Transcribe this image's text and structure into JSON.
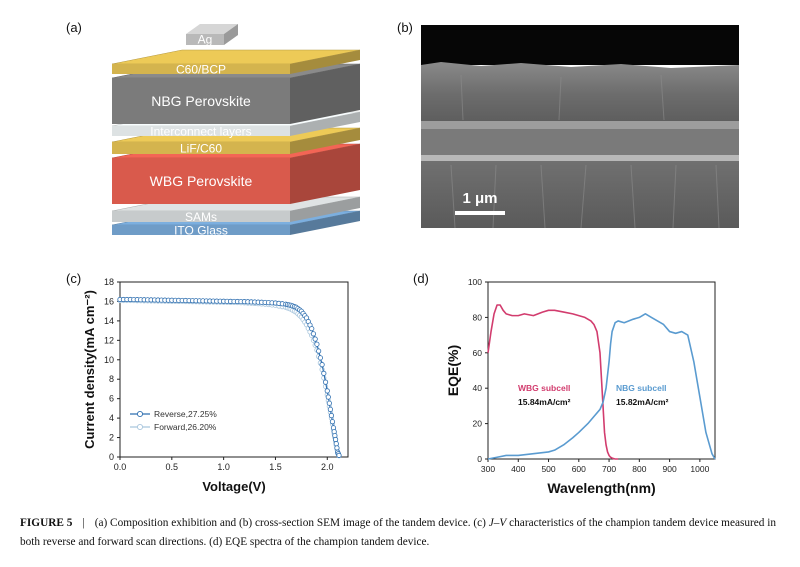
{
  "panels": {
    "a": "(a)",
    "b": "(b)",
    "c": "(c)",
    "d": "(d)"
  },
  "stack_layers": [
    {
      "label": "Ag",
      "color": "#b9b9b9"
    },
    {
      "label": "C60/BCP",
      "color": "#d4b44e"
    },
    {
      "label": "NBG Perovskite",
      "color": "#7b7b7b"
    },
    {
      "label": "Interconnect layers",
      "color": "#dde2e3"
    },
    {
      "label": "LiF/C60",
      "color": "#d4b44e"
    },
    {
      "label": "WBG Perovskite",
      "color": "#d95a4c"
    },
    {
      "label": "SAMs",
      "color": "#c7cbcc"
    },
    {
      "label": "ITO Glass",
      "color": "#6f9cc7"
    }
  ],
  "sem": {
    "scale_bar": "1 μm"
  },
  "chart_data": [
    {
      "type": "line",
      "xlabel": "Voltage(V)",
      "ylabel": "Current density(mA cm⁻²)",
      "xlim": [
        0.0,
        2.2
      ],
      "ylim": [
        0,
        18
      ],
      "xticks": [
        "0.0",
        "0.5",
        "1.0",
        "1.5",
        "2.0"
      ],
      "yticks": [
        "0",
        "2",
        "4",
        "6",
        "8",
        "10",
        "12",
        "14",
        "16",
        "18"
      ],
      "legend_position": "bottom-left",
      "series": [
        {
          "name": "Reverse,27.25%",
          "color": "#2f6fb0",
          "x": [
            0.0,
            0.1,
            0.2,
            0.3,
            0.4,
            0.5,
            0.6,
            0.7,
            0.8,
            0.9,
            1.0,
            1.1,
            1.2,
            1.3,
            1.4,
            1.5,
            1.6,
            1.65,
            1.7,
            1.75,
            1.8,
            1.85,
            1.9,
            1.95,
            2.0,
            2.03,
            2.06,
            2.08,
            2.1,
            2.12
          ],
          "y": [
            16.2,
            16.2,
            16.18,
            16.16,
            16.14,
            16.12,
            16.1,
            16.08,
            16.06,
            16.04,
            16.02,
            16.0,
            15.98,
            15.94,
            15.9,
            15.84,
            15.72,
            15.6,
            15.4,
            15.0,
            14.3,
            13.2,
            11.6,
            9.5,
            6.8,
            4.9,
            3.0,
            1.8,
            0.5,
            0.0
          ]
        },
        {
          "name": "Forward,26.20%",
          "color": "#a9c6dd",
          "x": [
            0.0,
            0.1,
            0.2,
            0.3,
            0.4,
            0.5,
            0.6,
            0.7,
            0.8,
            0.9,
            1.0,
            1.1,
            1.2,
            1.3,
            1.4,
            1.5,
            1.6,
            1.65,
            1.7,
            1.75,
            1.8,
            1.85,
            1.9,
            1.95,
            2.0,
            2.03,
            2.06,
            2.08,
            2.1,
            2.12
          ],
          "y": [
            16.1,
            16.1,
            16.08,
            16.06,
            16.04,
            16.02,
            16.0,
            15.98,
            15.96,
            15.94,
            15.92,
            15.9,
            15.86,
            15.8,
            15.72,
            15.6,
            15.4,
            15.2,
            14.9,
            14.4,
            13.6,
            12.5,
            11.0,
            9.0,
            6.4,
            4.6,
            2.8,
            1.6,
            0.4,
            0.0
          ]
        }
      ]
    },
    {
      "type": "line",
      "xlabel": "Wavelength(nm)",
      "ylabel": "EQE(%)",
      "xlim": [
        300,
        1050
      ],
      "ylim": [
        0,
        100
      ],
      "xticks": [
        "300",
        "400",
        "500",
        "600",
        "700",
        "800",
        "900",
        "1000"
      ],
      "yticks": [
        "0",
        "20",
        "40",
        "60",
        "80",
        "100"
      ],
      "series": [
        {
          "name": "WBG subcell",
          "annotation": "15.84mA/cm²",
          "color": "#d23c6e",
          "x": [
            300,
            310,
            320,
            330,
            340,
            350,
            360,
            380,
            400,
            420,
            450,
            480,
            500,
            520,
            550,
            580,
            600,
            620,
            640,
            650,
            660,
            670,
            675,
            680,
            685,
            690,
            695,
            700,
            705,
            710,
            720,
            730
          ],
          "y": [
            60,
            72,
            82,
            87,
            87,
            84,
            82,
            81,
            81,
            82,
            81,
            83,
            84,
            84,
            83,
            82,
            81,
            80,
            78,
            76,
            72,
            60,
            45,
            30,
            15,
            8,
            4,
            2,
            1,
            0.5,
            0,
            0
          ]
        },
        {
          "name": "NBG subcell",
          "annotation": "15.82mA/cm²",
          "color": "#5a9bd0",
          "x": [
            300,
            330,
            360,
            400,
            450,
            500,
            520,
            550,
            580,
            600,
            630,
            650,
            670,
            680,
            690,
            700,
            705,
            710,
            720,
            730,
            750,
            780,
            800,
            820,
            840,
            860,
            880,
            900,
            920,
            940,
            960,
            980,
            1000,
            1020,
            1040,
            1050
          ],
          "y": [
            0,
            1,
            2,
            2,
            3,
            4,
            5,
            8,
            12,
            15,
            20,
            24,
            28,
            32,
            40,
            55,
            65,
            72,
            77,
            78,
            77,
            79,
            80,
            82,
            80,
            78,
            76,
            72,
            71,
            72,
            70,
            55,
            35,
            15,
            3,
            0
          ]
        }
      ]
    }
  ],
  "caption": {
    "figure_label": "FIGURE 5",
    "separator": "|",
    "text_part1": "(a) Composition exhibition and (b) cross-section SEM image of the tandem device. (c) ",
    "jv": "J–V",
    "text_part2": " characteristics of the champion tandem device measured in both reverse and forward scan directions. (d) EQE spectra of the champion tandem device."
  }
}
